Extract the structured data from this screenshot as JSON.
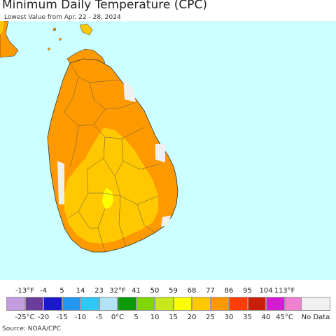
{
  "title": "Minimum Daily Temperature (CPC)",
  "subtitle": "Lowest Value from Apr. 22 - 28, 2024",
  "source": "Source: NOAA/CPC",
  "legend": {
    "fahrenheit_ticks": [
      "-13°F",
      "-4",
      "5",
      "14",
      "23",
      "32°F",
      "41",
      "50",
      "59",
      "68",
      "77",
      "86",
      "95",
      "104",
      "113°F"
    ],
    "celsius_ticks": [
      "-25°C",
      "-20",
      "-15",
      "-10",
      "-5",
      "0°C",
      "5",
      "10",
      "15",
      "20",
      "25",
      "30",
      "35",
      "40",
      "45°C"
    ],
    "colors": [
      "#c39be0",
      "#6a3d9a",
      "#1a1ac8",
      "#2196f3",
      "#2ec8f5",
      "#b3e2f7",
      "#0a9a0a",
      "#7fd600",
      "#c8e81a",
      "#ffff00",
      "#ffc800",
      "#ff9900",
      "#ff3d00",
      "#c81e0a",
      "#d21ed2",
      "#f080d0"
    ],
    "no_data_label": "No Data",
    "no_data_color": "#f0f0f0"
  },
  "map": {
    "ocean_color": "#ccffff",
    "regions": [
      {
        "name": "northern-and-coastal-zone",
        "temperature_band": "25-30°C",
        "color": "#ff9900"
      },
      {
        "name": "central-and-southern-zone",
        "temperature_band": "20-25°C",
        "color": "#ffc800"
      },
      {
        "name": "central-highlands-core",
        "temperature_band": "15-20°C",
        "color": "#ffff00"
      },
      {
        "name": "no-data-pixels",
        "temperature_band": "No Data",
        "color": "#f0f0f0"
      }
    ]
  }
}
